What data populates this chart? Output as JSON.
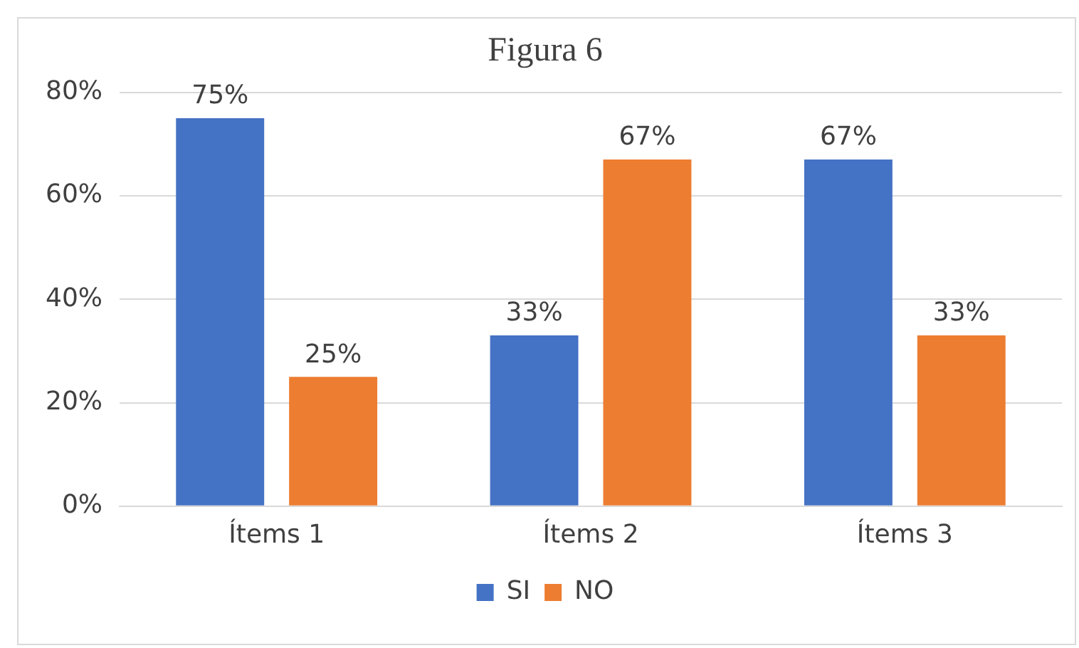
{
  "chart_data": {
    "type": "bar",
    "title": "Figura 6",
    "categories": [
      "Ítems 1",
      "Ítems 2",
      "Ítems 3"
    ],
    "series": [
      {
        "name": "SI",
        "color": "#4472c4",
        "values": [
          75,
          33,
          67
        ],
        "value_labels": [
          "75%",
          "33%",
          "67%"
        ]
      },
      {
        "name": "NO",
        "color": "#ed7d31",
        "values": [
          25,
          67,
          33
        ],
        "value_labels": [
          "25%",
          "67%",
          "33%"
        ]
      }
    ],
    "ylim": [
      0,
      80
    ],
    "yticks": [
      {
        "value": 0,
        "label": "0%"
      },
      {
        "value": 20,
        "label": "20%"
      },
      {
        "value": 40,
        "label": "40%"
      },
      {
        "value": 60,
        "label": "60%"
      },
      {
        "value": 80,
        "label": "80%"
      }
    ],
    "grid": "y",
    "legend": "bottom"
  }
}
